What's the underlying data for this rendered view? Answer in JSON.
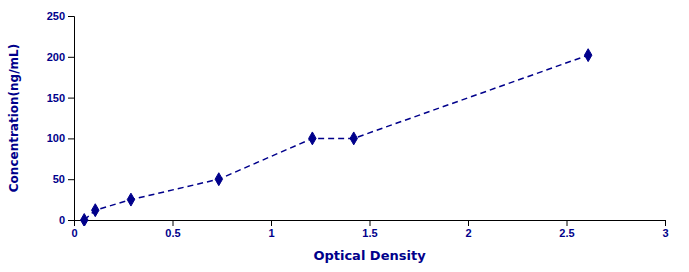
{
  "chart_data": {
    "type": "line",
    "x": [
      0.052,
      0.108,
      0.289,
      0.735,
      1.21,
      1.42,
      2.61
    ],
    "values": [
      0,
      12,
      25,
      50,
      100,
      100,
      202
    ],
    "xlabel": "Optical Density",
    "ylabel": "Concentration(ng/mL)",
    "xlim": [
      0,
      3
    ],
    "ylim": [
      0,
      250
    ],
    "xticks": [
      0,
      0.5,
      1,
      1.5,
      2,
      2.5,
      3
    ],
    "yticks": [
      0,
      50,
      100,
      150,
      200,
      250
    ],
    "color": "#00008B",
    "marker": "diamond",
    "line_style": "dashed",
    "grid": false
  }
}
